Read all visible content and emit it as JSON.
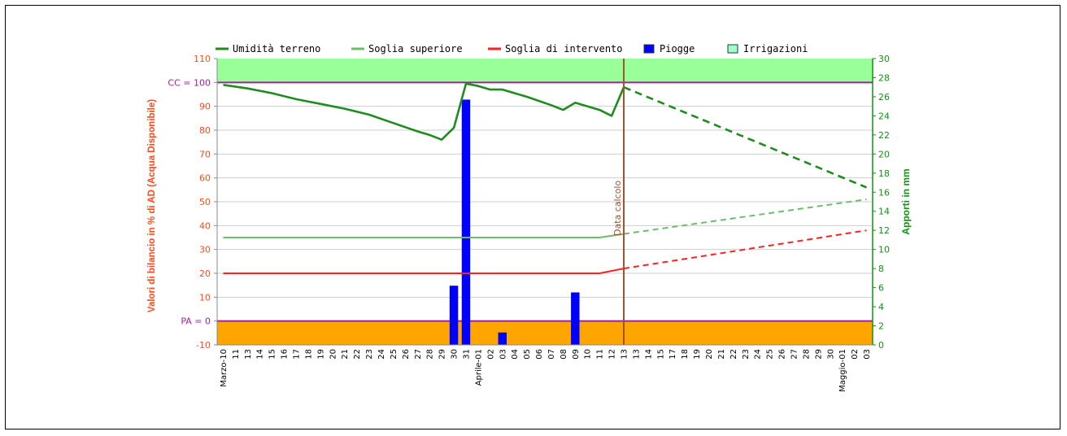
{
  "chart_data": {
    "type": "line",
    "legend_position": "top",
    "grid": true,
    "left_axis": {
      "label": "Valori di bilancio in % di AD (Acqua Disponibile)",
      "range": [
        -10,
        110
      ],
      "ticks": [
        -10,
        0,
        10,
        20,
        30,
        40,
        50,
        60,
        70,
        80,
        90,
        100,
        110
      ],
      "tick_labels": [
        "-10",
        "PA = 0",
        "10",
        "20",
        "30",
        "40",
        "50",
        "60",
        "70",
        "80",
        "90",
        "CC = 100",
        "110"
      ],
      "color": "#ff4a1a",
      "special_label_color": "#a020a0"
    },
    "right_axis": {
      "label": "Apporti in mm",
      "range": [
        0,
        30
      ],
      "ticks": [
        0,
        2,
        4,
        6,
        8,
        10,
        12,
        14,
        16,
        18,
        20,
        22,
        24,
        26,
        28,
        30
      ],
      "color": "#139113"
    },
    "x_labels": [
      "Marzo-10",
      "11",
      "13",
      "14",
      "15",
      "16",
      "17",
      "18",
      "19",
      "20",
      "21",
      "22",
      "23",
      "24",
      "25",
      "26",
      "27",
      "28",
      "29",
      "30",
      "31",
      "Aprile-01",
      "02",
      "03",
      "04",
      "05",
      "06",
      "07",
      "08",
      "09",
      "10",
      "11",
      "12",
      "13",
      "13",
      "14",
      "15",
      "17",
      "18",
      "19",
      "20",
      "21",
      "22",
      "23",
      "24",
      "25",
      "26",
      "27",
      "28",
      "29",
      "30",
      "Maggio-01",
      "02",
      "03"
    ],
    "bands": [
      {
        "name": "above_cc",
        "from": 100,
        "to": 110,
        "color": "#99ff99"
      },
      {
        "name": "below_pa",
        "from": -10,
        "to": 0,
        "color": "#ffa500"
      }
    ],
    "reference_lines": [
      {
        "name": "CC",
        "value": 100,
        "color": "#a020a0"
      },
      {
        "name": "PA",
        "value": 0,
        "color": "#a020a0"
      }
    ],
    "marker": {
      "label": "Data calcolo",
      "index": 33,
      "color": "#a0522d"
    },
    "series": [
      {
        "name": "Umidità terreno",
        "color": "#1e8c1e",
        "width": 2.6,
        "axis": "left",
        "style": "solid",
        "points": [
          [
            0,
            99
          ],
          [
            2,
            97.5
          ],
          [
            4,
            95.5
          ],
          [
            6,
            93
          ],
          [
            8,
            91
          ],
          [
            10,
            89
          ],
          [
            12,
            86.5
          ],
          [
            14,
            83
          ],
          [
            16,
            79.5
          ],
          [
            17,
            78
          ],
          [
            18,
            76
          ],
          [
            19,
            81
          ],
          [
            20,
            99.5
          ],
          [
            21,
            98.5
          ],
          [
            22,
            97
          ],
          [
            23,
            97
          ],
          [
            25,
            94
          ],
          [
            27,
            90.5
          ],
          [
            28,
            88.5
          ],
          [
            29,
            91.5
          ],
          [
            31,
            88.5
          ],
          [
            32,
            86
          ],
          [
            33,
            98
          ]
        ]
      },
      {
        "name": "Umidità terreno (previsione)",
        "color": "#1e8c1e",
        "width": 2.6,
        "axis": "left",
        "style": "dashed",
        "points": [
          [
            33,
            98
          ],
          [
            53,
            56
          ]
        ]
      },
      {
        "name": "Soglia superiore",
        "color": "#6abf6a",
        "width": 2,
        "axis": "left",
        "style": "solid",
        "points": [
          [
            0,
            35
          ],
          [
            31,
            35
          ],
          [
            33,
            36.5
          ]
        ]
      },
      {
        "name": "Soglia superiore (previsione)",
        "color": "#6abf6a",
        "width": 2,
        "axis": "left",
        "style": "dashed",
        "points": [
          [
            33,
            36.5
          ],
          [
            53,
            51
          ]
        ]
      },
      {
        "name": "Soglia di intervento",
        "color": "#ff2020",
        "width": 2,
        "axis": "left",
        "style": "solid",
        "points": [
          [
            0,
            20
          ],
          [
            31,
            20
          ],
          [
            33,
            22
          ]
        ]
      },
      {
        "name": "Soglia di intervento (previsione)",
        "color": "#ff2020",
        "width": 2,
        "axis": "left",
        "style": "dashed",
        "points": [
          [
            33,
            22
          ],
          [
            53,
            38
          ]
        ]
      }
    ],
    "bars": {
      "name": "Piogge",
      "color": "#0000ff",
      "axis": "right",
      "items": [
        {
          "index": 19,
          "value": 6.2
        },
        {
          "index": 20,
          "value": 25.7
        },
        {
          "index": 23,
          "value": 1.3
        },
        {
          "index": 29,
          "value": 5.5
        }
      ]
    },
    "legend": [
      {
        "label": "Umidità terreno",
        "kind": "line",
        "color": "#1e8c1e"
      },
      {
        "label": "Soglia superiore",
        "kind": "line",
        "color": "#6abf6a"
      },
      {
        "label": "Soglia di intervento",
        "kind": "line",
        "color": "#ff2020"
      },
      {
        "label": "Piogge",
        "kind": "box",
        "color": "#0000ff"
      },
      {
        "label": "Irrigazioni",
        "kind": "box",
        "color": "#99ffcc"
      }
    ]
  }
}
